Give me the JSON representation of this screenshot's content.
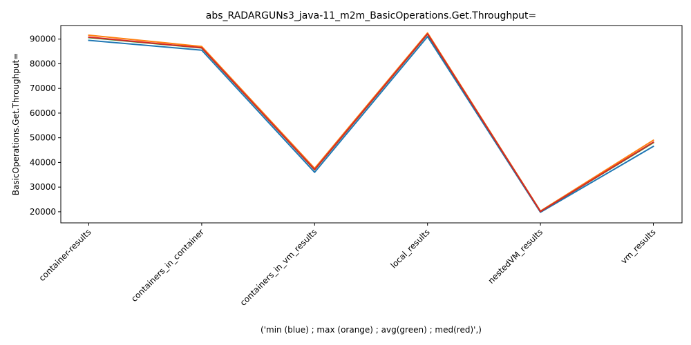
{
  "chart_data": {
    "type": "line",
    "title": "abs_RADARGUNs3_java-11_m2m_BasicOperations.Get.Throughput=",
    "xlabel": "('min (blue) ; max (orange) ; avg(green) ; med(red)',)",
    "ylabel": "BasicOperations.Get.Throughput=",
    "categories": [
      "container-results",
      "containers_in_container",
      "containers_in_vm_results",
      "local_results",
      "nestedVM_results",
      "vm_results"
    ],
    "ylim": [
      15500,
      95500
    ],
    "yticks": [
      20000,
      30000,
      40000,
      50000,
      60000,
      70000,
      80000,
      90000
    ],
    "grid": false,
    "series": [
      {
        "color": "#1f77b4",
        "values": [
          89500,
          85500,
          36000,
          91000,
          19800,
          46500
        ]
      },
      {
        "color": "#ff7f0e",
        "values": [
          91600,
          87000,
          37600,
          92500,
          20300,
          49000
        ]
      },
      {
        "color": "#2ca02c",
        "values": [
          90600,
          86400,
          37000,
          92000,
          20100,
          48000
        ]
      },
      {
        "color": "#d62728",
        "values": [
          90800,
          86500,
          37100,
          92100,
          20100,
          48200
        ]
      }
    ]
  }
}
